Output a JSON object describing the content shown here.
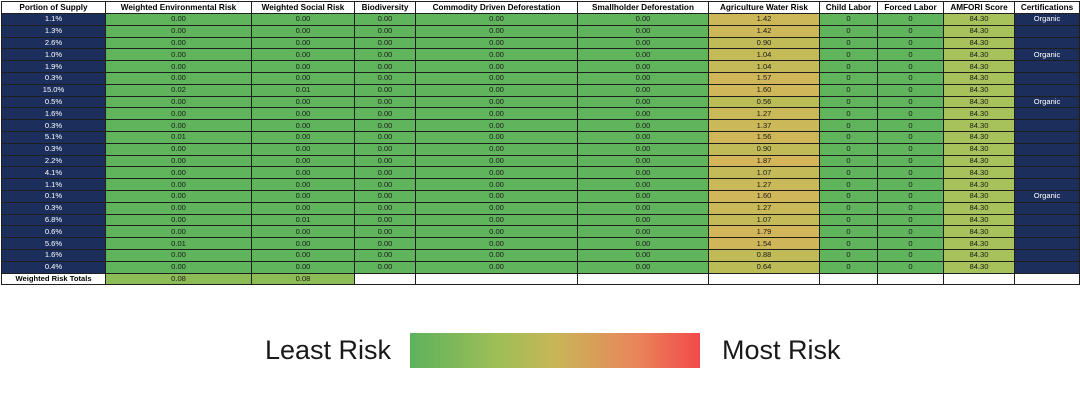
{
  "table": {
    "headers": [
      "Portion of Supply",
      "Weighted Environmental Risk",
      "Weighted Social Risk",
      "Biodiversity",
      "Commodity Driven Deforestation",
      "Smallholder Deforestation",
      "Agriculture Water Risk",
      "Child Labor",
      "Forced Labor",
      "AMFORI Score",
      "Certifications"
    ],
    "rows": [
      [
        "1.1%",
        "0.00",
        "0.00",
        "0.00",
        "0.00",
        "0.00",
        "1.42",
        "0",
        "0",
        "84.30",
        "Organic"
      ],
      [
        "1.3%",
        "0.00",
        "0.00",
        "0.00",
        "0.00",
        "0.00",
        "1.42",
        "0",
        "0",
        "84.30",
        ""
      ],
      [
        "2.6%",
        "0.00",
        "0.00",
        "0.00",
        "0.00",
        "0.00",
        "0.90",
        "0",
        "0",
        "84.30",
        ""
      ],
      [
        "1.0%",
        "0.00",
        "0.00",
        "0.00",
        "0.00",
        "0.00",
        "1.04",
        "0",
        "0",
        "84.30",
        "Organic"
      ],
      [
        "1.9%",
        "0.00",
        "0.00",
        "0.00",
        "0.00",
        "0.00",
        "1.04",
        "0",
        "0",
        "84.30",
        ""
      ],
      [
        "0.3%",
        "0.00",
        "0.00",
        "0.00",
        "0.00",
        "0.00",
        "1.57",
        "0",
        "0",
        "84.30",
        ""
      ],
      [
        "15.0%",
        "0.02",
        "0.01",
        "0.00",
        "0.00",
        "0.00",
        "1.60",
        "0",
        "0",
        "84.30",
        ""
      ],
      [
        "0.5%",
        "0.00",
        "0.00",
        "0.00",
        "0.00",
        "0.00",
        "0.56",
        "0",
        "0",
        "84.30",
        "Organic"
      ],
      [
        "1.6%",
        "0.00",
        "0.00",
        "0.00",
        "0.00",
        "0.00",
        "1.27",
        "0",
        "0",
        "84.30",
        ""
      ],
      [
        "0.3%",
        "0.00",
        "0.00",
        "0.00",
        "0.00",
        "0.00",
        "1.37",
        "0",
        "0",
        "84.30",
        ""
      ],
      [
        "5.1%",
        "0.01",
        "0.00",
        "0.00",
        "0.00",
        "0.00",
        "1.56",
        "0",
        "0",
        "84.30",
        ""
      ],
      [
        "0.3%",
        "0.00",
        "0.00",
        "0.00",
        "0.00",
        "0.00",
        "0.90",
        "0",
        "0",
        "84.30",
        ""
      ],
      [
        "2.2%",
        "0.00",
        "0.00",
        "0.00",
        "0.00",
        "0.00",
        "1.87",
        "0",
        "0",
        "84.30",
        ""
      ],
      [
        "4.1%",
        "0.00",
        "0.00",
        "0.00",
        "0.00",
        "0.00",
        "1.07",
        "0",
        "0",
        "84.30",
        ""
      ],
      [
        "1.1%",
        "0.00",
        "0.00",
        "0.00",
        "0.00",
        "0.00",
        "1.27",
        "0",
        "0",
        "84.30",
        ""
      ],
      [
        "0.1%",
        "0.00",
        "0.00",
        "0.00",
        "0.00",
        "0.00",
        "1.60",
        "0",
        "0",
        "84.30",
        "Organic"
      ],
      [
        "0.3%",
        "0.00",
        "0.00",
        "0.00",
        "0.00",
        "0.00",
        "1.27",
        "0",
        "0",
        "84.30",
        ""
      ],
      [
        "6.8%",
        "0.00",
        "0.01",
        "0.00",
        "0.00",
        "0.00",
        "1.07",
        "0",
        "0",
        "84.30",
        ""
      ],
      [
        "0.6%",
        "0.00",
        "0.00",
        "0.00",
        "0.00",
        "0.00",
        "1.79",
        "0",
        "0",
        "84.30",
        ""
      ],
      [
        "5.6%",
        "0.01",
        "0.00",
        "0.00",
        "0.00",
        "0.00",
        "1.54",
        "0",
        "0",
        "84.30",
        ""
      ],
      [
        "1.6%",
        "0.00",
        "0.00",
        "0.00",
        "0.00",
        "0.00",
        "0.88",
        "0",
        "0",
        "84.30",
        ""
      ],
      [
        "0.4%",
        "0.00",
        "0.00",
        "0.00",
        "0.00",
        "0.00",
        "0.64",
        "0",
        "0",
        "84.30",
        ""
      ]
    ],
    "totals": {
      "label": "Weighted Risk Totals",
      "environmental": "0.08",
      "social": "0.08"
    }
  },
  "legend": {
    "low_label": "Least Risk",
    "high_label": "Most Risk",
    "low_color": "#5db25c",
    "high_color": "#f24a4a"
  },
  "colors": {
    "supply_cell": "#1c2f5c",
    "low_risk_cell": "#5fb45c",
    "water_risk_low": "#b9bd56",
    "water_risk_high": "#d6b55a",
    "amfori_cell": "#a8c25b"
  }
}
